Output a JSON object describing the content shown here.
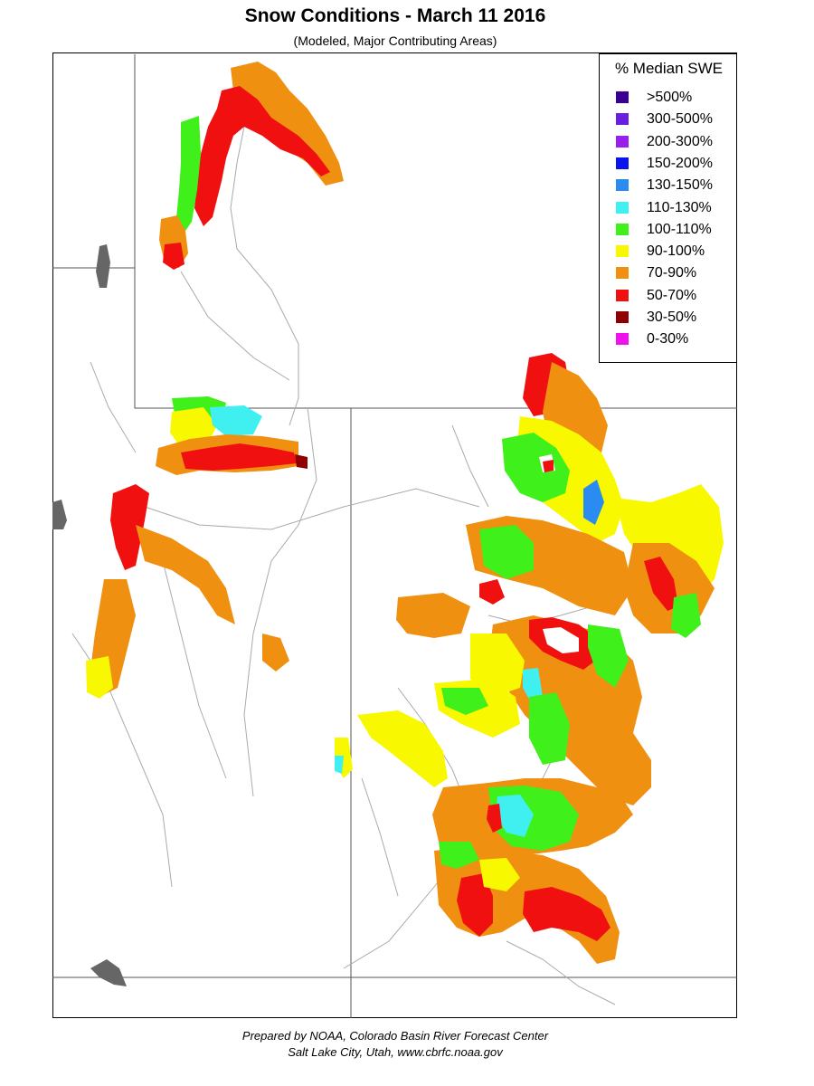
{
  "title": "Snow Conditions - March 11 2016",
  "subtitle": "(Modeled, Major Contributing Areas)",
  "legend": {
    "title": "% Median SWE",
    "items": [
      {
        "label": ">500%",
        "color": "#3a0090"
      },
      {
        "label": "300-500%",
        "color": "#6a1ee0"
      },
      {
        "label": "200-300%",
        "color": "#9a1ef0"
      },
      {
        "label": "150-200%",
        "color": "#0a14f0"
      },
      {
        "label": "130-150%",
        "color": "#2a8cf0"
      },
      {
        "label": "110-130%",
        "color": "#40f0f0"
      },
      {
        "label": "100-110%",
        "color": "#40f01a"
      },
      {
        "label": "90-100%",
        "color": "#f8f800"
      },
      {
        "label": "70-90%",
        "color": "#f09010"
      },
      {
        "label": "50-70%",
        "color": "#f01010"
      },
      {
        "label": "30-50%",
        "color": "#900000"
      },
      {
        "label": "0-30%",
        "color": "#f010f0"
      }
    ]
  },
  "credit": {
    "line1": "Prepared by NOAA, Colorado Basin River Forecast Center",
    "line2": "Salt Lake City, Utah, www.cbrfc.noaa.gov"
  }
}
